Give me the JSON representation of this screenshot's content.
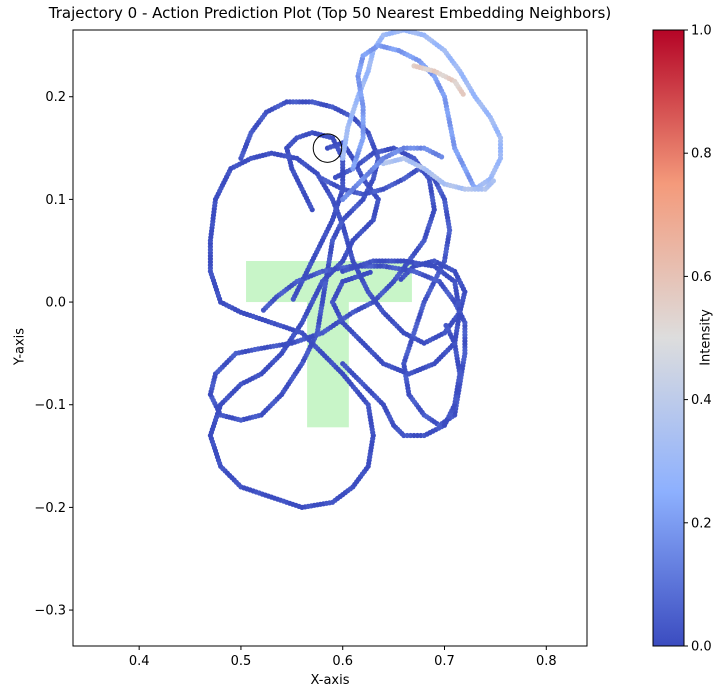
{
  "chart_data": {
    "type": "scatter",
    "title": "Trajectory 0 - Action Prediction Plot (Top 50 Nearest Embedding Neighbors)",
    "xlabel": "X-axis",
    "ylabel": "Y-axis",
    "xlim": [
      0.335,
      0.84
    ],
    "ylim": [
      -0.335,
      0.265
    ],
    "xticks": [
      "0.4",
      "0.5",
      "0.6",
      "0.7",
      "0.8"
    ],
    "xtick_values": [
      0.4,
      0.5,
      0.6,
      0.7,
      0.8
    ],
    "yticks": [
      "0.2",
      "0.1",
      "0.0",
      "−0.1",
      "−0.2",
      "−0.3"
    ],
    "ytick_values": [
      0.2,
      0.1,
      0.0,
      -0.1,
      -0.2,
      -0.3
    ],
    "colorbar": {
      "label": "Intensity",
      "ticks": [
        "0.0",
        "0.2",
        "0.4",
        "0.6",
        "0.8",
        "1.0"
      ],
      "tick_values": [
        0.0,
        0.2,
        0.4,
        0.6,
        0.8,
        1.0
      ],
      "colormap": "coolwarm"
    },
    "target_shape": {
      "color": "#c8f5c8",
      "rects": [
        {
          "x0": 0.505,
          "x1": 0.668,
          "y0": 0.0,
          "y1": 0.04
        },
        {
          "x0": 0.565,
          "x1": 0.606,
          "y0": -0.122,
          "y1": 0.04
        }
      ]
    },
    "marker_circle": {
      "x": 0.585,
      "y": 0.15,
      "r": 0.014
    },
    "trajectories": [
      {
        "points": [
          [
            0.585,
            0.15
          ],
          [
            0.6,
            0.155
          ],
          [
            0.61,
            0.14
          ],
          [
            0.62,
            0.12
          ],
          [
            0.635,
            0.1
          ],
          [
            0.63,
            0.08
          ],
          [
            0.61,
            0.06
          ],
          [
            0.6,
            0.04
          ],
          [
            0.58,
            0.02
          ],
          [
            0.56,
            -0.02
          ],
          [
            0.54,
            -0.05
          ],
          [
            0.52,
            -0.07
          ],
          [
            0.5,
            -0.08
          ],
          [
            0.48,
            -0.1
          ],
          [
            0.47,
            -0.13
          ],
          [
            0.48,
            -0.16
          ],
          [
            0.5,
            -0.18
          ],
          [
            0.53,
            -0.19
          ],
          [
            0.56,
            -0.2
          ],
          [
            0.59,
            -0.195
          ],
          [
            0.61,
            -0.18
          ],
          [
            0.625,
            -0.16
          ],
          [
            0.63,
            -0.13
          ],
          [
            0.625,
            -0.1
          ],
          [
            0.6,
            -0.07
          ],
          [
            0.58,
            -0.05
          ],
          [
            0.56,
            -0.03
          ],
          [
            0.53,
            -0.02
          ],
          [
            0.5,
            -0.01
          ],
          [
            0.48,
            0.0
          ],
          [
            0.47,
            0.03
          ],
          [
            0.47,
            0.06
          ],
          [
            0.475,
            0.1
          ],
          [
            0.49,
            0.13
          ],
          [
            0.51,
            0.14
          ],
          [
            0.53,
            0.145
          ],
          [
            0.555,
            0.14
          ],
          [
            0.575,
            0.125
          ],
          [
            0.59,
            0.1
          ],
          [
            0.6,
            0.075
          ],
          [
            0.61,
            0.04
          ],
          [
            0.625,
            0.01
          ],
          [
            0.64,
            -0.01
          ],
          [
            0.66,
            -0.03
          ],
          [
            0.68,
            -0.04
          ],
          [
            0.7,
            -0.03
          ],
          [
            0.715,
            -0.01
          ],
          [
            0.72,
            0.01
          ],
          [
            0.71,
            0.03
          ],
          [
            0.69,
            0.04
          ],
          [
            0.67,
            0.035
          ],
          [
            0.655,
            0.02
          ]
        ],
        "intensity": 0.0
      },
      {
        "points": [
          [
            0.5,
            0.14
          ],
          [
            0.51,
            0.165
          ],
          [
            0.525,
            0.185
          ],
          [
            0.545,
            0.195
          ],
          [
            0.57,
            0.195
          ],
          [
            0.59,
            0.19
          ],
          [
            0.61,
            0.18
          ],
          [
            0.625,
            0.165
          ],
          [
            0.635,
            0.14
          ],
          [
            0.63,
            0.12
          ],
          [
            0.62,
            0.1
          ],
          [
            0.6,
            0.08
          ],
          [
            0.59,
            0.06
          ],
          [
            0.585,
            0.03
          ],
          [
            0.58,
            0.0
          ],
          [
            0.575,
            -0.03
          ],
          [
            0.56,
            -0.06
          ],
          [
            0.54,
            -0.09
          ],
          [
            0.52,
            -0.11
          ],
          [
            0.5,
            -0.115
          ],
          [
            0.48,
            -0.11
          ],
          [
            0.47,
            -0.09
          ],
          [
            0.475,
            -0.07
          ],
          [
            0.495,
            -0.05
          ],
          [
            0.52,
            -0.045
          ],
          [
            0.55,
            -0.04
          ],
          [
            0.58,
            -0.03
          ],
          [
            0.61,
            -0.01
          ],
          [
            0.63,
            0.0
          ],
          [
            0.65,
            0.02
          ],
          [
            0.665,
            0.04
          ],
          [
            0.68,
            0.06
          ],
          [
            0.69,
            0.09
          ],
          [
            0.685,
            0.12
          ],
          [
            0.67,
            0.14
          ],
          [
            0.65,
            0.15
          ],
          [
            0.63,
            0.145
          ],
          [
            0.61,
            0.13
          ],
          [
            0.59,
            0.12
          ]
        ],
        "intensity": 0.02
      },
      {
        "points": [
          [
            0.58,
            0.12
          ],
          [
            0.6,
            0.11
          ],
          [
            0.62,
            0.105
          ],
          [
            0.64,
            0.11
          ],
          [
            0.66,
            0.12
          ],
          [
            0.675,
            0.13
          ],
          [
            0.69,
            0.12
          ],
          [
            0.7,
            0.1
          ],
          [
            0.705,
            0.07
          ],
          [
            0.7,
            0.04
          ],
          [
            0.69,
            0.02
          ],
          [
            0.68,
            0.0
          ],
          [
            0.67,
            -0.03
          ],
          [
            0.66,
            -0.06
          ],
          [
            0.665,
            -0.09
          ],
          [
            0.68,
            -0.11
          ],
          [
            0.695,
            -0.12
          ],
          [
            0.71,
            -0.11
          ],
          [
            0.715,
            -0.08
          ],
          [
            0.72,
            -0.05
          ],
          [
            0.72,
            -0.02
          ],
          [
            0.71,
            0.0
          ],
          [
            0.695,
            0.02
          ],
          [
            0.67,
            0.03
          ],
          [
            0.64,
            0.035
          ],
          [
            0.61,
            0.035
          ],
          [
            0.58,
            0.03
          ],
          [
            0.555,
            0.02
          ],
          [
            0.535,
            0.005
          ],
          [
            0.52,
            -0.01
          ]
        ],
        "intensity": 0.03
      },
      {
        "points": [
          [
            0.6,
            0.03
          ],
          [
            0.63,
            0.04
          ],
          [
            0.66,
            0.04
          ],
          [
            0.69,
            0.035
          ],
          [
            0.71,
            0.02
          ],
          [
            0.715,
            -0.01
          ],
          [
            0.71,
            -0.04
          ],
          [
            0.69,
            -0.06
          ],
          [
            0.665,
            -0.07
          ],
          [
            0.64,
            -0.06
          ],
          [
            0.62,
            -0.04
          ],
          [
            0.6,
            -0.02
          ],
          [
            0.59,
            0.0
          ],
          [
            0.6,
            0.02
          ],
          [
            0.63,
            0.03
          ]
        ],
        "intensity": 0.0
      },
      {
        "points": [
          [
            0.6,
            -0.06
          ],
          [
            0.62,
            -0.08
          ],
          [
            0.64,
            -0.1
          ],
          [
            0.65,
            -0.12
          ],
          [
            0.66,
            -0.13
          ],
          [
            0.68,
            -0.13
          ],
          [
            0.7,
            -0.12
          ],
          [
            0.71,
            -0.1
          ],
          [
            0.715,
            -0.07
          ],
          [
            0.71,
            -0.04
          ],
          [
            0.7,
            -0.02
          ]
        ],
        "intensity": 0.01
      },
      {
        "points": [
          [
            0.57,
            0.09
          ],
          [
            0.56,
            0.11
          ],
          [
            0.55,
            0.13
          ],
          [
            0.545,
            0.15
          ],
          [
            0.555,
            0.16
          ],
          [
            0.57,
            0.165
          ],
          [
            0.59,
            0.16
          ],
          [
            0.6,
            0.14
          ],
          [
            0.6,
            0.11
          ],
          [
            0.59,
            0.08
          ],
          [
            0.58,
            0.06
          ],
          [
            0.57,
            0.04
          ],
          [
            0.56,
            0.02
          ],
          [
            0.55,
            0.0
          ]
        ],
        "intensity": 0.0
      },
      {
        "points": [
          [
            0.6,
            0.14
          ],
          [
            0.605,
            0.17
          ],
          [
            0.615,
            0.2
          ],
          [
            0.625,
            0.225
          ],
          [
            0.63,
            0.245
          ],
          [
            0.64,
            0.26
          ],
          [
            0.66,
            0.265
          ],
          [
            0.68,
            0.26
          ],
          [
            0.7,
            0.245
          ],
          [
            0.715,
            0.225
          ],
          [
            0.73,
            0.2
          ],
          [
            0.745,
            0.18
          ],
          [
            0.755,
            0.16
          ],
          [
            0.755,
            0.14
          ],
          [
            0.745,
            0.12
          ],
          [
            0.73,
            0.11
          ]
        ],
        "intensity": 0.3
      },
      {
        "points": [
          [
            0.61,
            0.13
          ],
          [
            0.62,
            0.16
          ],
          [
            0.62,
            0.19
          ],
          [
            0.615,
            0.22
          ],
          [
            0.62,
            0.24
          ],
          [
            0.635,
            0.25
          ],
          [
            0.655,
            0.245
          ],
          [
            0.675,
            0.235
          ],
          [
            0.69,
            0.22
          ],
          [
            0.7,
            0.2
          ],
          [
            0.705,
            0.175
          ],
          [
            0.71,
            0.15
          ],
          [
            0.72,
            0.13
          ],
          [
            0.73,
            0.11
          ]
        ],
        "intensity": 0.2
      },
      {
        "points": [
          [
            0.67,
            0.23
          ],
          [
            0.69,
            0.225
          ],
          [
            0.71,
            0.215
          ],
          [
            0.72,
            0.2
          ]
        ],
        "intensity": 0.55
      },
      {
        "points": [
          [
            0.64,
            0.135
          ],
          [
            0.66,
            0.14
          ],
          [
            0.68,
            0.13
          ],
          [
            0.7,
            0.115
          ],
          [
            0.72,
            0.11
          ],
          [
            0.74,
            0.11
          ],
          [
            0.75,
            0.12
          ]
        ],
        "intensity": 0.35
      },
      {
        "points": [
          [
            0.6,
            0.1
          ],
          [
            0.62,
            0.12
          ],
          [
            0.64,
            0.14
          ],
          [
            0.66,
            0.15
          ],
          [
            0.68,
            0.15
          ],
          [
            0.7,
            0.14
          ]
        ],
        "intensity": 0.15
      }
    ]
  }
}
